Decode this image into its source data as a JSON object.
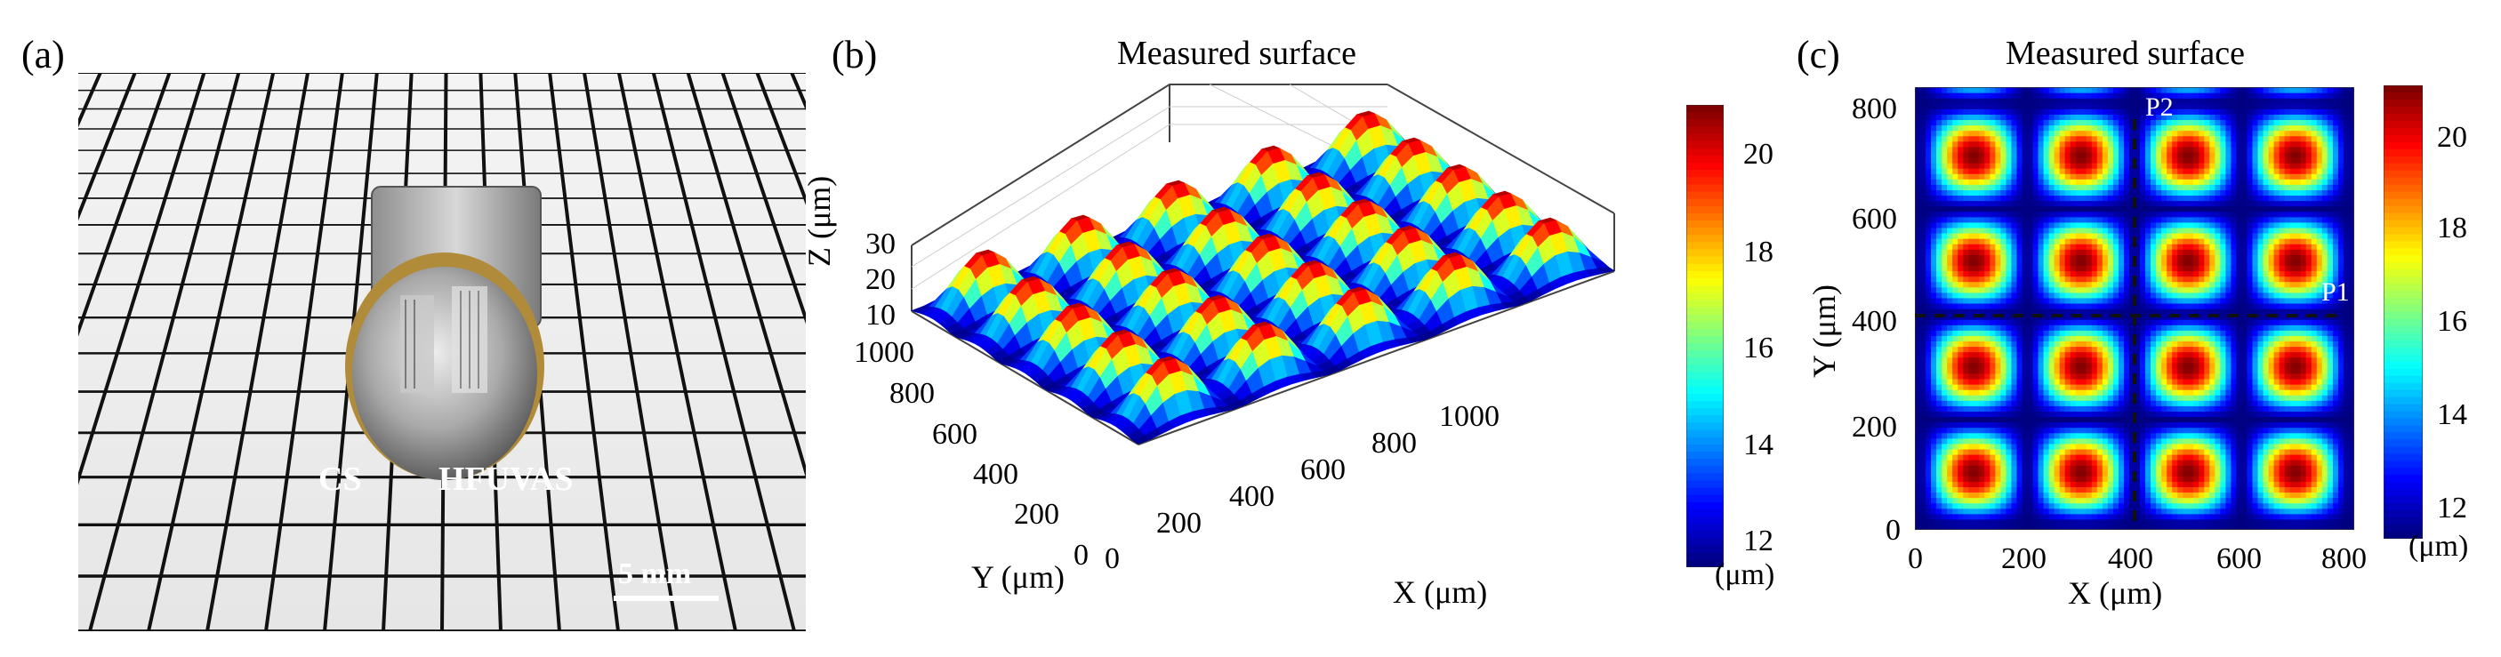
{
  "panels": {
    "a": {
      "label": "(a)",
      "photo": {
        "labels": [
          "CS",
          "HFUVAS"
        ],
        "scale_bar_text": "5 mm"
      }
    },
    "b": {
      "label": "(b)",
      "title": "Measured surface",
      "z_axis_label": "Z (μm)",
      "z_ticks": [
        "30",
        "20",
        "10"
      ],
      "y_axis_label": "Y (μm)",
      "y_ticks": [
        "1000",
        "800",
        "600",
        "400",
        "200",
        "0"
      ],
      "x_axis_label": "X (μm)",
      "x_ticks": [
        "0",
        "200",
        "400",
        "600",
        "800",
        "1000"
      ],
      "colorbar_ticks": [
        "20",
        "18",
        "16",
        "14",
        "12"
      ],
      "colorbar_unit": "(μm)"
    },
    "c": {
      "label": "(c)",
      "title": "Measured surface",
      "y_axis_label": "Y (μm)",
      "y_ticks": [
        "800",
        "600",
        "400",
        "200",
        "0"
      ],
      "x_axis_label": "X (μm)",
      "x_ticks": [
        "0",
        "200",
        "400",
        "600",
        "800"
      ],
      "marker_p1": "P1",
      "marker_p2": "P2",
      "colorbar_ticks": [
        "20",
        "18",
        "16",
        "14",
        "12"
      ],
      "colorbar_unit": "(μm)"
    }
  },
  "colors": {
    "jet_low": "#00008f",
    "jet_mid": "#00ffff",
    "jet_high": "#800000"
  }
}
